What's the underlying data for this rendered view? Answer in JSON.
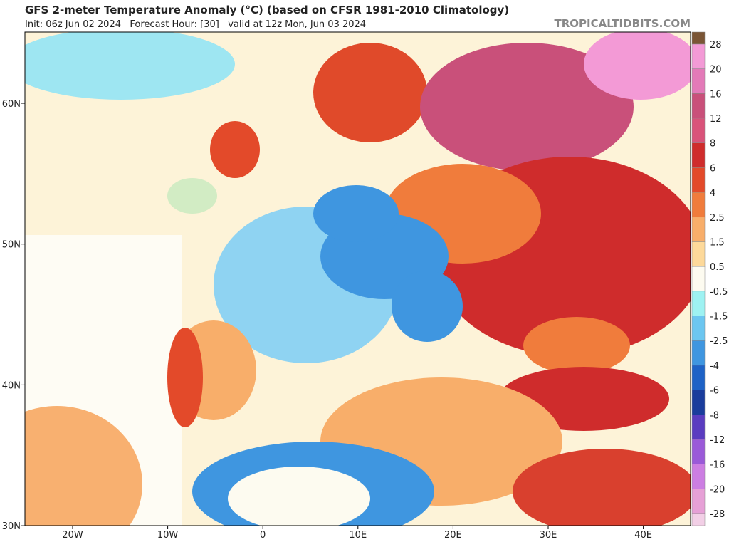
{
  "header": {
    "title": "GFS 2-meter Temperature Anomaly (°C) (based on CFSR 1981-2010 Climatology)",
    "subtitle": "Init: 06z Jun 02 2024   Forecast Hour: [30]   valid at 12z Mon, Jun 03 2024",
    "watermark": "TROPICALTIDBITS.COM"
  },
  "map": {
    "lat_labels": [
      "60N",
      "50N",
      "40N",
      "30N"
    ],
    "lon_labels": [
      "20W",
      "10W",
      "0",
      "10E",
      "20E",
      "30E",
      "40E"
    ]
  },
  "colorbar": {
    "labels": [
      "28",
      "20",
      "16",
      "12",
      "8",
      "6",
      "4",
      "2.5",
      "1.5",
      "0.5",
      "-0.5",
      "-1.5",
      "-2.5",
      "-4",
      "-6",
      "-8",
      "-12",
      "-16",
      "-20",
      "-28"
    ],
    "colors": [
      "#7a5535",
      "#f39ad6",
      "#e37ab8",
      "#c9507a",
      "#d9537a",
      "#cf2c2c",
      "#e34a2a",
      "#f07c3c",
      "#f8ae6a",
      "#fdd99a",
      "#fdfbf0",
      "#9ef2f2",
      "#6cc6f0",
      "#3f96e0",
      "#1e62c6",
      "#1a3c9c",
      "#5a3cc0",
      "#9a5ad8",
      "#cc7ee2",
      "#e6a0d6",
      "#f2cfe6"
    ]
  }
}
